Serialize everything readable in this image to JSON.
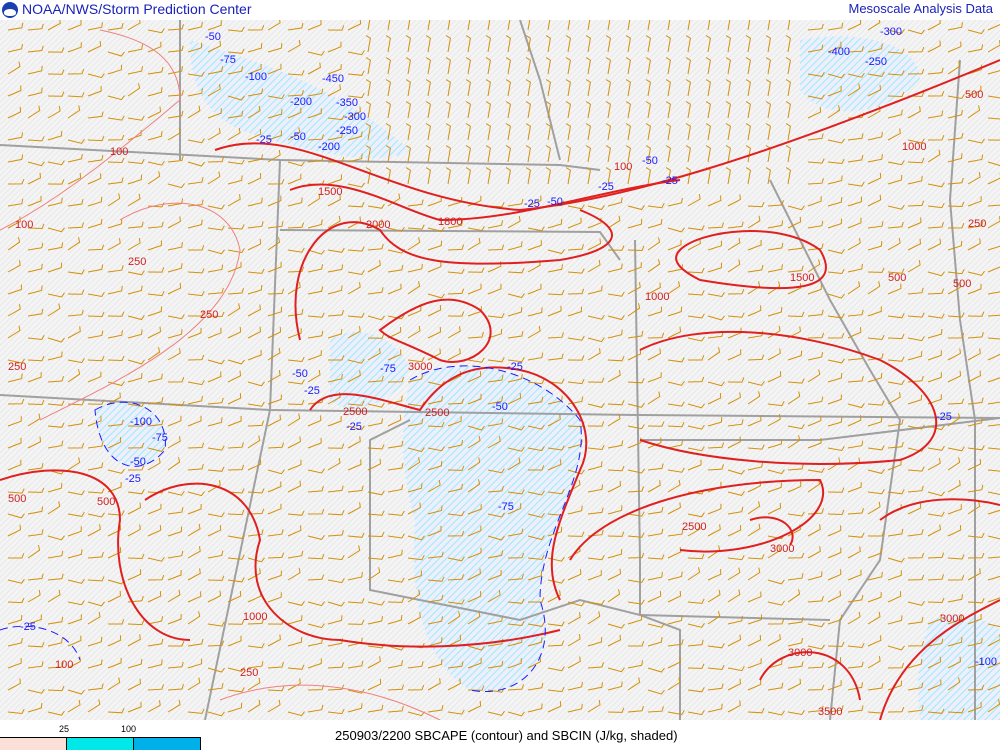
{
  "header": {
    "title": "NOAA/NWS/Storm Prediction Center",
    "product": "Mesoscale Analysis Data",
    "logo": "noaa-logo"
  },
  "caption": "250903/2200 SBCAPE (contour) and SBCIN (J/kg, shaded)",
  "legend": {
    "ticks": [
      "25",
      "100"
    ],
    "colors": [
      "#fae0d8",
      "#00e8e8",
      "#00b0e8"
    ]
  },
  "colors": {
    "cape_contour": "#e02020",
    "cape_thin": "#f08080",
    "cin_contour": "#1a1aff",
    "cin_shade": "#7fe8e8",
    "wind_barbs": "#d4900a",
    "borders": "#a0a0a0"
  },
  "cape_labels": [
    "100",
    "100",
    "250",
    "250",
    "250",
    "250",
    "500",
    "500",
    "500",
    "500",
    "500",
    "1000",
    "1000",
    "1000",
    "1500",
    "1500",
    "1800",
    "2000",
    "2500",
    "2500",
    "2500",
    "3000",
    "3000",
    "3000",
    "3000",
    "3500",
    "250",
    "100",
    "100"
  ],
  "cin_labels": [
    "-50",
    "-75",
    "-100",
    "-200",
    "-450",
    "-350",
    "-300",
    "-250",
    "-25",
    "-50",
    "-200",
    "-50",
    "-25",
    "-100",
    "-75",
    "-25",
    "-50",
    "-25",
    "-50",
    "-75",
    "-25",
    "-50",
    "-75",
    "-25",
    "-25",
    "-25",
    "-400",
    "-300",
    "-250",
    "-50",
    "-25",
    "-25",
    "-100"
  ]
}
